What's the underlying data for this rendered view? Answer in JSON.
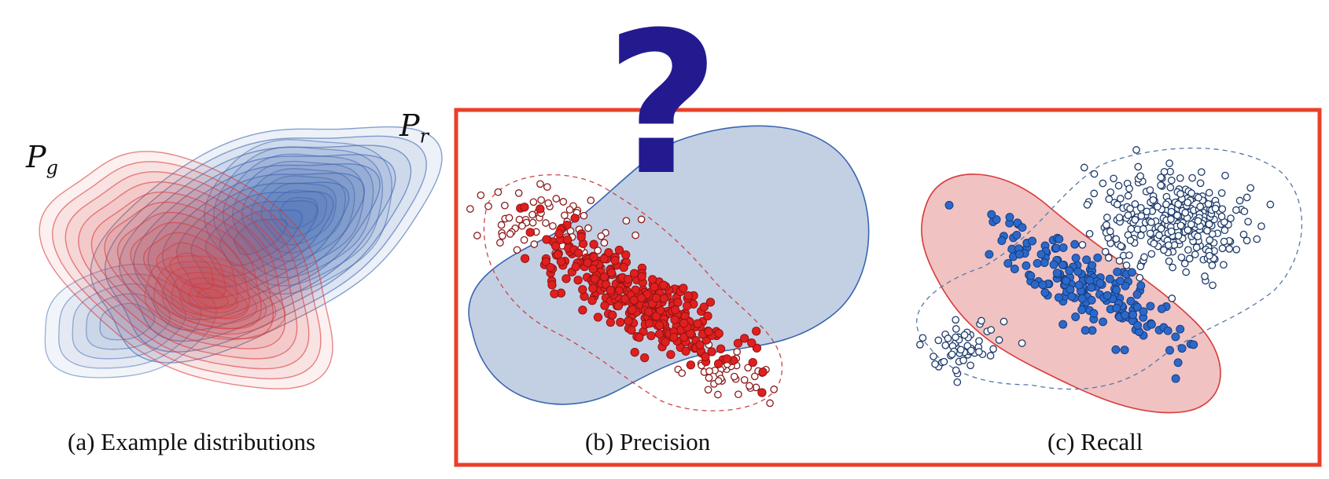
{
  "labels": {
    "pg_main": "P",
    "pg_sub": "g",
    "pr_main": "P",
    "pr_sub": "r",
    "question_mark": "?"
  },
  "captions": {
    "a": "(a) Example distributions",
    "b": "(b) Precision",
    "c": "(c) Recall"
  },
  "colors": {
    "red": "#d93a3a",
    "blue": "#3a66b0",
    "frame": "#e8402a",
    "question": "#241a8f"
  }
}
